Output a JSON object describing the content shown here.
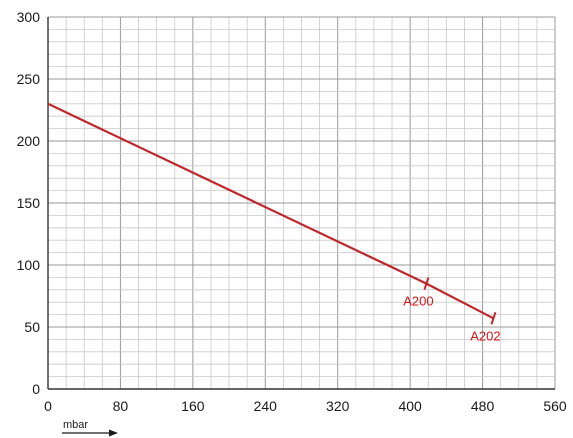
{
  "chart_data": {
    "type": "line",
    "title": "",
    "xlabel": "mbar",
    "ylabel": "",
    "xlim": [
      0,
      560
    ],
    "ylim": [
      0,
      300
    ],
    "xticks": [
      0,
      80,
      160,
      240,
      320,
      400,
      480,
      560
    ],
    "yticks": [
      0,
      50,
      100,
      150,
      200,
      250,
      300
    ],
    "x_minor_step": 20,
    "y_minor_step": 10,
    "grid": true,
    "line_color": "#c0272d",
    "annotation_color": "#d01818",
    "series": [
      {
        "values": [
          {
            "x": 0,
            "y": 230
          },
          {
            "x": 418,
            "y": 85
          },
          {
            "x": 492,
            "y": 57
          }
        ]
      }
    ],
    "annotations": [
      {
        "label": "A200",
        "x": 418,
        "y": 85
      },
      {
        "label": "A202",
        "x": 492,
        "y": 57
      }
    ]
  }
}
